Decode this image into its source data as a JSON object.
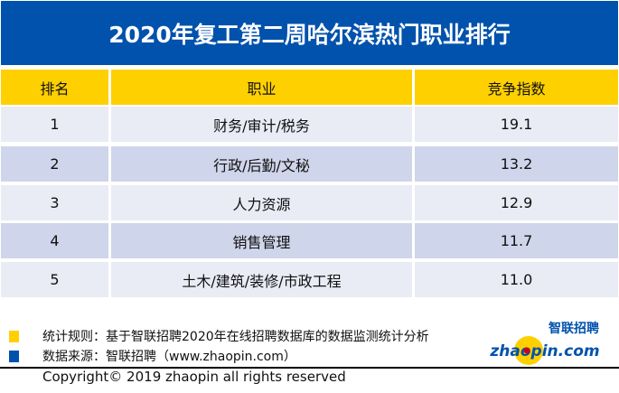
{
  "title": "2020年复工第二周哈尔滨热门职业排行",
  "table": {
    "headers": [
      "排名",
      "职业",
      "竞争指数"
    ],
    "rows": [
      {
        "rank": "1",
        "job": "财务/审计/税务",
        "index": "19.1"
      },
      {
        "rank": "2",
        "job": "行政/后勤/文秘",
        "index": "13.2"
      },
      {
        "rank": "3",
        "job": "人力资源",
        "index": "12.9"
      },
      {
        "rank": "4",
        "job": "销售管理",
        "index": "11.7"
      },
      {
        "rank": "5",
        "job": "土木/建筑/装修/市政工程",
        "index": "11.0"
      }
    ]
  },
  "footer": {
    "rule": "统计规则：基于智联招聘2020年在线招聘数据库的数据监测统计分析",
    "source": "数据来源：智联招聘（www.zhaopin.com）",
    "copyright": "Copyright© 2019 zhaopin all rights reserved"
  },
  "logo": {
    "cn": "智联招聘",
    "en": "zhaopin.com"
  },
  "colors": {
    "title_bg": "#0152AC",
    "header_bg": "#FFD000",
    "row_light": "#E9EBF5",
    "row_dark": "#CFD5EA",
    "legend_yellow": "#FFD000",
    "legend_blue": "#0152AC"
  }
}
